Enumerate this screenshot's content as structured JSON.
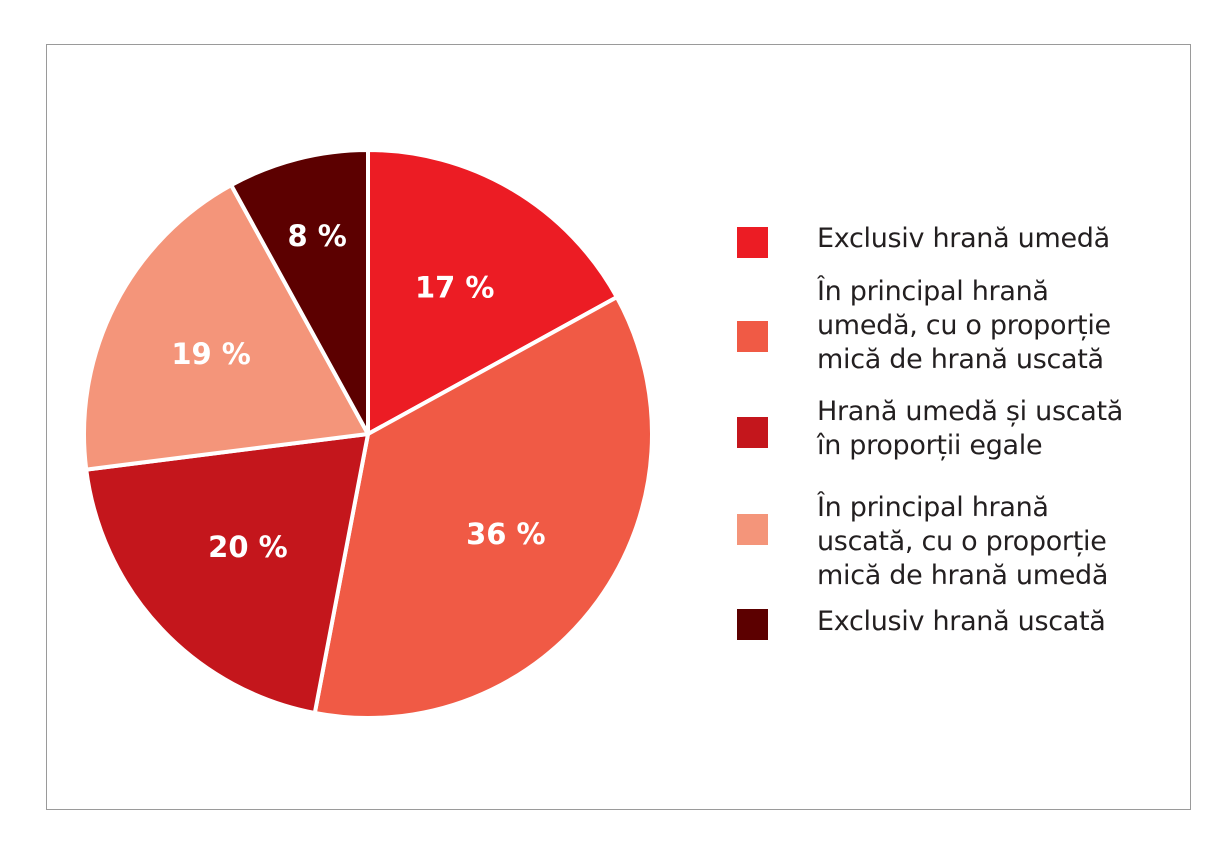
{
  "chart_data": {
    "type": "pie",
    "title": "",
    "start_angle": "12 o'clock, clockwise",
    "categories": [
      "Exclusiv hrană umedă",
      "În principal hrană umedă, cu o proporție mică de hrană uscată",
      "Hrană umedă și uscată în proporții egale",
      "În principal hrană uscată, cu o proporție mică de hrană umedă",
      "Exclusiv hrană uscată"
    ],
    "values": [
      17,
      36,
      20,
      19,
      8
    ],
    "labels": [
      "17 %",
      "36 %",
      "20 %",
      "19 %",
      "8 %"
    ],
    "colors": [
      "#ec1c24",
      "#f05a45",
      "#c4161c",
      "#f4957a",
      "#5c0000"
    ],
    "legend_position": "right"
  },
  "legend": {
    "items": [
      {
        "lines": [
          "Exclusiv hrană umedă"
        ],
        "color": "#ec1c24"
      },
      {
        "lines": [
          "În principal hrană",
          "umedă, cu o proporție",
          "mică de hrană uscată"
        ],
        "color": "#f05a45"
      },
      {
        "lines": [
          "Hrană umedă și uscată",
          "în proporții egale"
        ],
        "color": "#c4161c"
      },
      {
        "lines": [
          "În principal hrană",
          "uscată, cu o proporție",
          "mică de hrană umedă"
        ],
        "color": "#f4957a"
      },
      {
        "lines": [
          "Exclusiv hrană uscată"
        ],
        "color": "#5c0000"
      }
    ]
  }
}
